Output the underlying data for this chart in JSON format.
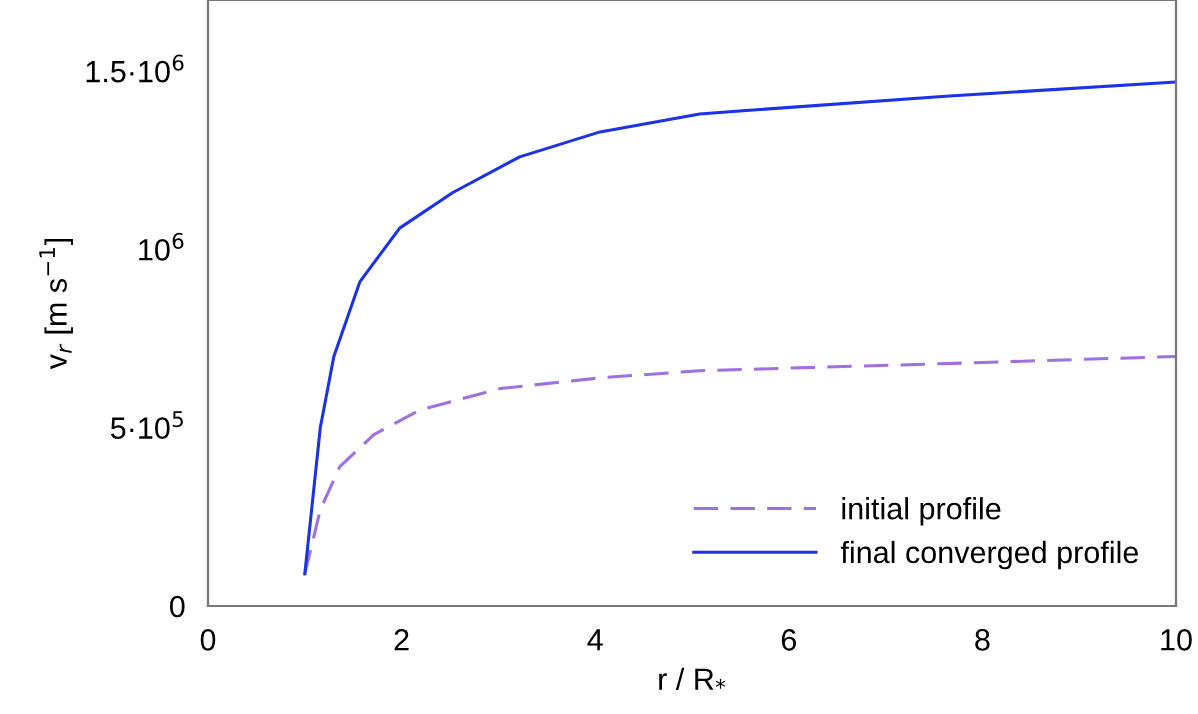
{
  "chart_data": {
    "type": "line",
    "xlabel": "r / R$_{*}$",
    "ylabel": "v$_{r}$ [m s$^{−1}$]",
    "xlim": [
      0,
      10
    ],
    "xticks": [
      0,
      2,
      4,
      6,
      8,
      10
    ],
    "ylim": [
      0,
      1700000
    ],
    "yticks": [
      0,
      {
        "value": 500000,
        "label": "5·10$^{5}$"
      },
      {
        "value": 1000000,
        "label": "10$^{6}$"
      },
      {
        "value": 1500000,
        "label": "1.5·10$^{6}$"
      }
    ],
    "grid": false,
    "legend": "bottom right",
    "series": [
      {
        "name": "initial profile",
        "color": "#a070e0",
        "line_style": "dashed",
        "x": [
          1.0,
          1.16,
          1.36,
          1.71,
          2.19,
          3.02,
          4.05,
          5.08,
          7.62,
          10
        ],
        "values": [
          90000,
          270000,
          390000,
          480000,
          550000,
          610000,
          640000,
          660000,
          680000,
          700000
        ]
      },
      {
        "name": "final converged profile",
        "color": "#1a33e6",
        "line_style": "solid",
        "x": [
          1.0,
          1.16,
          1.3,
          1.57,
          1.98,
          2.53,
          3.22,
          4.05,
          5.08,
          5.56,
          7.62,
          10
        ],
        "values": [
          90000,
          500000,
          700000,
          910000,
          1060000,
          1160000,
          1260000,
          1330000,
          1380000,
          1390000,
          1430000,
          1470000
        ]
      }
    ]
  }
}
